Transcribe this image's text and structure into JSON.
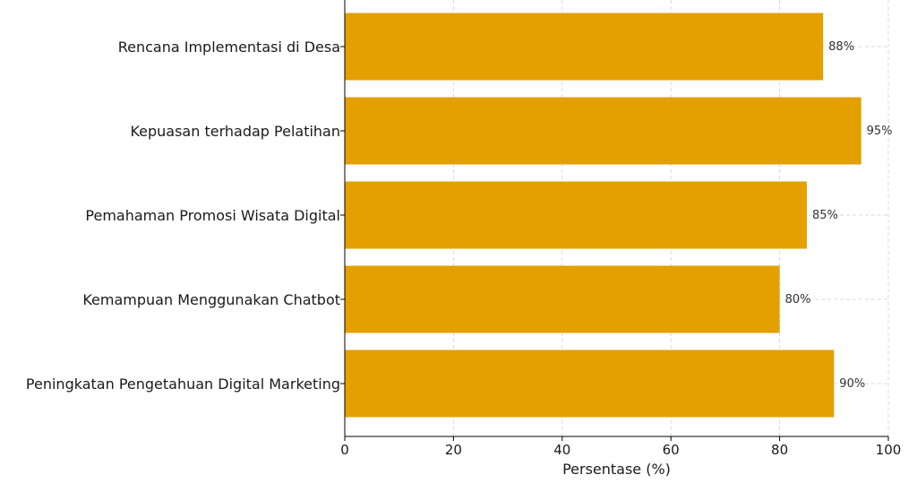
{
  "chart_data": {
    "type": "bar",
    "orientation": "horizontal",
    "categories": [
      "Peningkatan Pengetahuan Digital Marketing",
      "Kemampuan Menggunakan Chatbot",
      "Pemahaman Promosi Wisata Digital",
      "Kepuasan terhadap Pelatihan",
      "Rencana Implementasi di Desa"
    ],
    "values": [
      90,
      80,
      85,
      95,
      88
    ],
    "value_labels": [
      "90%",
      "80%",
      "85%",
      "95%",
      "88%"
    ],
    "title": "",
    "xlabel": "Persentase (%)",
    "ylabel": "",
    "xlim": [
      0,
      100
    ],
    "xticks": [
      0,
      20,
      40,
      60,
      80,
      100
    ],
    "xtick_labels": [
      "0",
      "20",
      "40",
      "60",
      "80",
      "100"
    ],
    "grid": true,
    "bar_color": "#E49F00"
  }
}
